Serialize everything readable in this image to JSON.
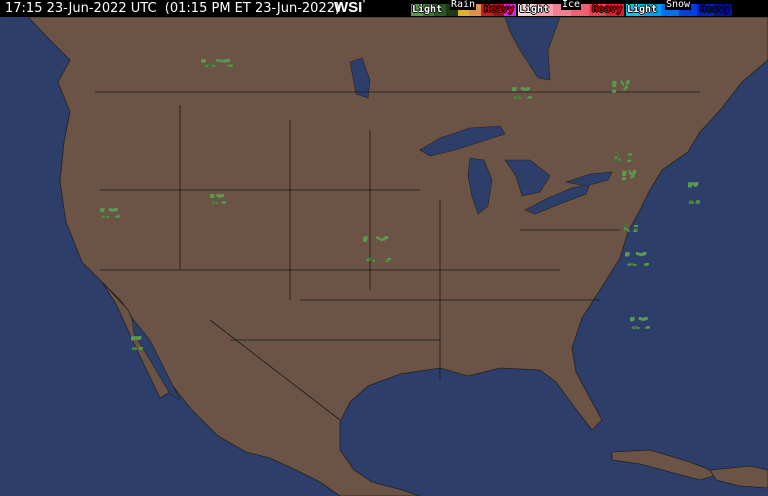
{
  "header": {
    "timestamp": "17:15 23-Jun-2022 UTC  (01:15 PM ET 23-Jun-2022)",
    "logo": "WSI",
    "logo_mark": "°"
  },
  "legend": {
    "rain": {
      "title": "Rain",
      "light": "Light",
      "heavy": "Heavy",
      "colors": [
        "#5a9a4e",
        "#3e7a34",
        "#2a5a22",
        "#1a3a14",
        "#e0b030",
        "#e09050",
        "#c02020",
        "#a01010",
        "#e020e0"
      ]
    },
    "ice": {
      "title": "Ice",
      "light": "Light",
      "heavy": "Heavy",
      "colors": [
        "#f8d0d8",
        "#f8a0b0",
        "#f08090",
        "#f06070",
        "#f04050",
        "#e02030"
      ]
    },
    "snow": {
      "title": "Snow",
      "light": "Light",
      "heavy": "Heavy",
      "colors": [
        "#00c8f0",
        "#00a0f0",
        "#0070f0",
        "#0040e0",
        "#0020c0",
        "#0010a0"
      ]
    }
  },
  "colors": {
    "land": "#6b5446",
    "water": "#2d3e6b",
    "border": "#1a1a1a",
    "radar_light": "#5a9a4e",
    "radar_mid": "#3e7a34"
  }
}
